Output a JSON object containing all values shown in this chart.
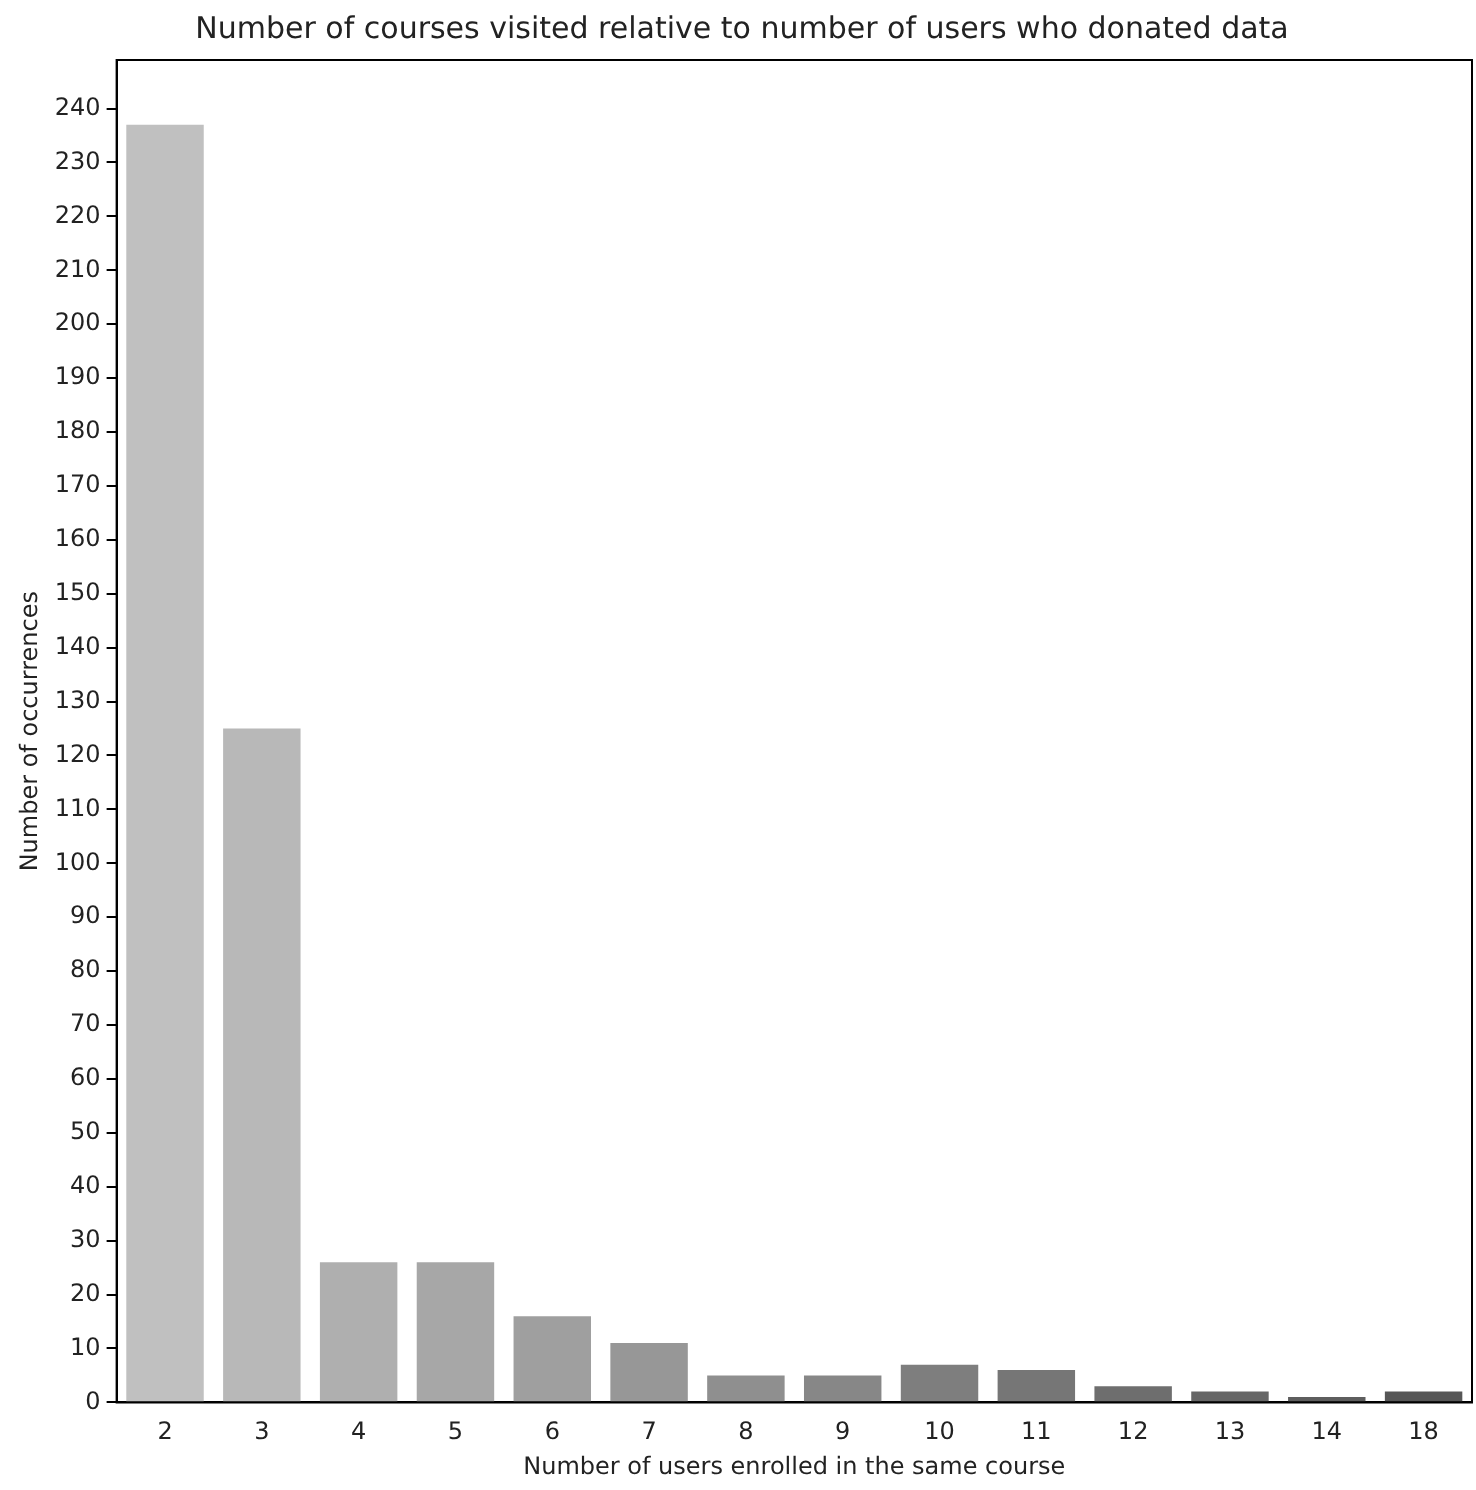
{
  "chart_data": {
    "type": "bar",
    "title": "Number of courses visited relative to number of users who donated data",
    "xlabel": "Number of users enrolled in the same course",
    "ylabel": "Number of occurrences",
    "categories": [
      "2",
      "3",
      "4",
      "5",
      "6",
      "7",
      "8",
      "9",
      "10",
      "11",
      "12",
      "13",
      "14",
      "18"
    ],
    "values": [
      237,
      125,
      26,
      26,
      16,
      11,
      5,
      5,
      7,
      6,
      3,
      2,
      1,
      2
    ],
    "colors": [
      "#c0c0c0",
      "#b8b8b8",
      "#afafaf",
      "#a7a7a7",
      "#9f9f9f",
      "#979797",
      "#8f8f8f",
      "#878787",
      "#7e7e7e",
      "#767676",
      "#6e6e6e",
      "#666666",
      "#5e5e5e",
      "#565656"
    ],
    "ylim": [
      0,
      249
    ],
    "yticks": [
      0,
      10,
      20,
      30,
      40,
      50,
      60,
      70,
      80,
      90,
      100,
      110,
      120,
      130,
      140,
      150,
      160,
      170,
      180,
      190,
      200,
      210,
      220,
      230,
      240
    ],
    "grid": false,
    "legend": false
  }
}
